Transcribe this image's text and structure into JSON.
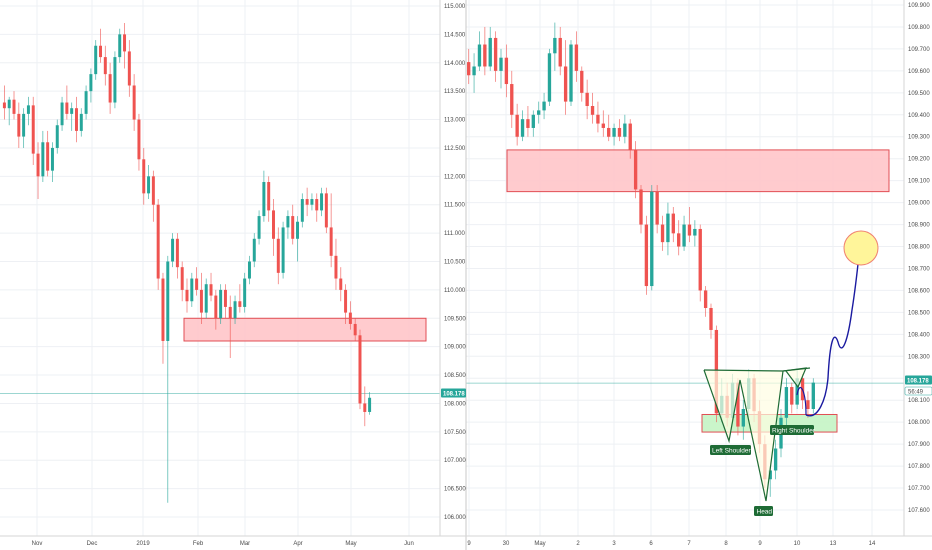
{
  "colors": {
    "up": "#26a69a",
    "down": "#ef5350",
    "grid": "#eef0f4",
    "current_line": "#26a69a",
    "zone_red_fill": "#ffc9cc",
    "zone_red_stroke": "#e0454b",
    "zone_green_fill": "#c8f5c8",
    "zone_green_stroke": "#e0454b",
    "pattern_fill": "#fffde3",
    "pattern_stroke": "#1e6b35",
    "projection": "#1a1aa0",
    "target_fill": "#fff59a",
    "target_stroke": "#f08070",
    "label_bg": "#1e6b35"
  },
  "chart_data": [
    {
      "type": "candlestick",
      "title": "",
      "x_ticks": [
        "Nov",
        "Dec",
        "2019",
        "Feb",
        "Mar",
        "Apr",
        "May",
        "Jun"
      ],
      "y_ticks": [
        "115.000",
        "114.500",
        "114.000",
        "113.500",
        "113.000",
        "112.500",
        "112.000",
        "111.500",
        "111.000",
        "110.500",
        "110.000",
        "109.500",
        "109.000",
        "108.500",
        "108.000",
        "107.500",
        "107.000",
        "106.500",
        "106.000"
      ],
      "ylim": [
        105.8,
        115.1
      ],
      "current_price": "108.178",
      "zones": [
        {
          "label": "resistance",
          "from": 109.1,
          "to": 109.5
        }
      ],
      "candles": [
        {
          "o": 113.3,
          "h": 113.6,
          "l": 113.0,
          "c": 113.2
        },
        {
          "o": 113.2,
          "h": 113.4,
          "l": 112.9,
          "c": 113.35
        },
        {
          "o": 113.35,
          "h": 113.5,
          "l": 113.0,
          "c": 113.1
        },
        {
          "o": 113.1,
          "h": 113.3,
          "l": 112.5,
          "c": 112.7
        },
        {
          "o": 112.7,
          "h": 113.2,
          "l": 112.5,
          "c": 113.1
        },
        {
          "o": 113.1,
          "h": 113.4,
          "l": 112.9,
          "c": 113.25
        },
        {
          "o": 113.25,
          "h": 113.4,
          "l": 112.2,
          "c": 112.4
        },
        {
          "o": 112.4,
          "h": 112.6,
          "l": 111.6,
          "c": 112.0
        },
        {
          "o": 112.0,
          "h": 112.8,
          "l": 111.9,
          "c": 112.6
        },
        {
          "o": 112.6,
          "h": 112.8,
          "l": 112.0,
          "c": 112.1
        },
        {
          "o": 112.1,
          "h": 112.6,
          "l": 111.9,
          "c": 112.5
        },
        {
          "o": 112.5,
          "h": 113.0,
          "l": 112.4,
          "c": 112.9
        },
        {
          "o": 112.9,
          "h": 113.4,
          "l": 112.8,
          "c": 113.3
        },
        {
          "o": 113.3,
          "h": 113.6,
          "l": 113.0,
          "c": 113.1
        },
        {
          "o": 113.1,
          "h": 113.3,
          "l": 112.8,
          "c": 113.2
        },
        {
          "o": 113.2,
          "h": 113.4,
          "l": 112.6,
          "c": 112.8
        },
        {
          "o": 112.8,
          "h": 113.2,
          "l": 112.7,
          "c": 113.1
        },
        {
          "o": 113.1,
          "h": 113.6,
          "l": 113.0,
          "c": 113.5
        },
        {
          "o": 113.5,
          "h": 113.9,
          "l": 113.3,
          "c": 113.8
        },
        {
          "o": 113.8,
          "h": 114.4,
          "l": 113.7,
          "c": 114.3
        },
        {
          "o": 114.3,
          "h": 114.6,
          "l": 114.0,
          "c": 114.1
        },
        {
          "o": 114.1,
          "h": 114.3,
          "l": 113.6,
          "c": 113.8
        },
        {
          "o": 113.8,
          "h": 114.0,
          "l": 113.1,
          "c": 113.3
        },
        {
          "o": 113.3,
          "h": 114.2,
          "l": 113.2,
          "c": 114.1
        },
        {
          "o": 114.1,
          "h": 114.6,
          "l": 114.0,
          "c": 114.5
        },
        {
          "o": 114.5,
          "h": 114.7,
          "l": 113.9,
          "c": 114.2
        },
        {
          "o": 114.2,
          "h": 114.4,
          "l": 113.4,
          "c": 113.6
        },
        {
          "o": 113.6,
          "h": 113.8,
          "l": 112.8,
          "c": 113.0
        },
        {
          "o": 113.0,
          "h": 113.1,
          "l": 112.1,
          "c": 112.3
        },
        {
          "o": 112.3,
          "h": 112.5,
          "l": 111.5,
          "c": 111.7
        },
        {
          "o": 111.7,
          "h": 112.2,
          "l": 111.6,
          "c": 112.0
        },
        {
          "o": 112.0,
          "h": 112.1,
          "l": 111.2,
          "c": 111.5
        },
        {
          "o": 111.5,
          "h": 111.6,
          "l": 110.0,
          "c": 110.2
        },
        {
          "o": 110.2,
          "h": 110.3,
          "l": 108.7,
          "c": 109.1
        },
        {
          "o": 109.1,
          "h": 110.6,
          "l": 106.25,
          "c": 110.5
        },
        {
          "o": 110.5,
          "h": 111.0,
          "l": 110.4,
          "c": 110.9
        },
        {
          "o": 110.9,
          "h": 111.0,
          "l": 110.2,
          "c": 110.4
        },
        {
          "o": 110.4,
          "h": 110.5,
          "l": 109.8,
          "c": 110.0
        },
        {
          "o": 110.0,
          "h": 110.2,
          "l": 109.6,
          "c": 109.8
        },
        {
          "o": 109.8,
          "h": 110.3,
          "l": 109.7,
          "c": 110.2
        },
        {
          "o": 110.2,
          "h": 110.4,
          "l": 109.9,
          "c": 110.0
        },
        {
          "o": 110.0,
          "h": 110.3,
          "l": 109.4,
          "c": 109.6
        },
        {
          "o": 109.6,
          "h": 110.2,
          "l": 109.5,
          "c": 110.1
        },
        {
          "o": 110.1,
          "h": 110.3,
          "l": 109.8,
          "c": 109.9
        },
        {
          "o": 109.9,
          "h": 110.0,
          "l": 109.3,
          "c": 109.5
        },
        {
          "o": 109.5,
          "h": 110.1,
          "l": 109.4,
          "c": 110.0
        },
        {
          "o": 110.0,
          "h": 110.1,
          "l": 109.5,
          "c": 109.7
        },
        {
          "o": 109.7,
          "h": 109.9,
          "l": 108.8,
          "c": 109.5
        },
        {
          "o": 109.5,
          "h": 109.9,
          "l": 109.4,
          "c": 109.8
        },
        {
          "o": 109.8,
          "h": 110.1,
          "l": 109.6,
          "c": 109.7
        },
        {
          "o": 109.7,
          "h": 110.3,
          "l": 109.6,
          "c": 110.2
        },
        {
          "o": 110.2,
          "h": 110.6,
          "l": 110.1,
          "c": 110.5
        },
        {
          "o": 110.5,
          "h": 111.0,
          "l": 110.4,
          "c": 110.9
        },
        {
          "o": 110.9,
          "h": 111.4,
          "l": 110.8,
          "c": 111.3
        },
        {
          "o": 111.3,
          "h": 112.1,
          "l": 111.2,
          "c": 111.9
        },
        {
          "o": 111.9,
          "h": 112.0,
          "l": 111.2,
          "c": 111.4
        },
        {
          "o": 111.4,
          "h": 111.6,
          "l": 110.6,
          "c": 110.9
        },
        {
          "o": 110.9,
          "h": 111.1,
          "l": 110.1,
          "c": 110.3
        },
        {
          "o": 110.3,
          "h": 111.2,
          "l": 110.2,
          "c": 111.1
        },
        {
          "o": 111.1,
          "h": 111.4,
          "l": 110.9,
          "c": 111.3
        },
        {
          "o": 111.3,
          "h": 111.5,
          "l": 110.8,
          "c": 110.9
        },
        {
          "o": 110.9,
          "h": 111.3,
          "l": 110.5,
          "c": 111.2
        },
        {
          "o": 111.2,
          "h": 111.7,
          "l": 111.1,
          "c": 111.6
        },
        {
          "o": 111.6,
          "h": 111.8,
          "l": 111.3,
          "c": 111.5
        },
        {
          "o": 111.5,
          "h": 111.7,
          "l": 111.4,
          "c": 111.6
        },
        {
          "o": 111.6,
          "h": 111.7,
          "l": 111.2,
          "c": 111.4
        },
        {
          "o": 111.4,
          "h": 111.8,
          "l": 111.3,
          "c": 111.7
        },
        {
          "o": 111.7,
          "h": 111.8,
          "l": 111.0,
          "c": 111.1
        },
        {
          "o": 111.1,
          "h": 111.7,
          "l": 110.4,
          "c": 110.6
        },
        {
          "o": 110.6,
          "h": 110.9,
          "l": 110.0,
          "c": 110.2
        },
        {
          "o": 110.2,
          "h": 110.4,
          "l": 109.8,
          "c": 110.0
        },
        {
          "o": 110.0,
          "h": 110.1,
          "l": 109.4,
          "c": 109.6
        },
        {
          "o": 109.6,
          "h": 109.8,
          "l": 109.3,
          "c": 109.4
        },
        {
          "o": 109.4,
          "h": 109.5,
          "l": 109.1,
          "c": 109.2
        },
        {
          "o": 109.2,
          "h": 109.3,
          "l": 107.9,
          "c": 108.0
        },
        {
          "o": 108.0,
          "h": 108.3,
          "l": 107.6,
          "c": 107.85
        },
        {
          "o": 107.85,
          "h": 108.2,
          "l": 107.8,
          "c": 108.1
        }
      ]
    },
    {
      "type": "candlestick",
      "title": "",
      "x_ticks": [
        "9",
        "30",
        "May",
        "2",
        "3",
        "6",
        "7",
        "8",
        "9",
        "10",
        "13",
        "14"
      ],
      "y_ticks": [
        "109.900",
        "109.800",
        "109.700",
        "109.600",
        "109.500",
        "109.400",
        "109.300",
        "109.200",
        "109.100",
        "109.000",
        "108.900",
        "108.800",
        "108.700",
        "108.600",
        "108.500",
        "108.400",
        "108.300",
        "108.200",
        "108.100",
        "108.000",
        "107.900",
        "107.800",
        "107.700",
        "107.600"
      ],
      "ylim": [
        107.55,
        109.95
      ],
      "current_price": "108.178",
      "countdown": "56:49",
      "zones": [
        {
          "label": "resistance",
          "from": 109.05,
          "to": 109.24
        },
        {
          "label": "support",
          "from": 107.955,
          "to": 108.035
        }
      ],
      "annotations": [
        "Left Shoulder",
        "Head",
        "Right Shoulder"
      ],
      "candles": [
        {
          "o": 109.64,
          "h": 109.7,
          "l": 109.54,
          "c": 109.58
        },
        {
          "o": 109.58,
          "h": 109.68,
          "l": 109.5,
          "c": 109.62
        },
        {
          "o": 109.62,
          "h": 109.78,
          "l": 109.6,
          "c": 109.72
        },
        {
          "o": 109.72,
          "h": 109.8,
          "l": 109.58,
          "c": 109.62
        },
        {
          "o": 109.62,
          "h": 109.8,
          "l": 109.6,
          "c": 109.75
        },
        {
          "o": 109.75,
          "h": 109.78,
          "l": 109.55,
          "c": 109.6
        },
        {
          "o": 109.6,
          "h": 109.7,
          "l": 109.52,
          "c": 109.66
        },
        {
          "o": 109.66,
          "h": 109.72,
          "l": 109.48,
          "c": 109.54
        },
        {
          "o": 109.54,
          "h": 109.6,
          "l": 109.34,
          "c": 109.4
        },
        {
          "o": 109.4,
          "h": 109.45,
          "l": 109.26,
          "c": 109.3
        },
        {
          "o": 109.3,
          "h": 109.42,
          "l": 109.28,
          "c": 109.38
        },
        {
          "o": 109.38,
          "h": 109.44,
          "l": 109.3,
          "c": 109.34
        },
        {
          "o": 109.34,
          "h": 109.42,
          "l": 109.3,
          "c": 109.4
        },
        {
          "o": 109.4,
          "h": 109.46,
          "l": 109.36,
          "c": 109.42
        },
        {
          "o": 109.42,
          "h": 109.5,
          "l": 109.38,
          "c": 109.46
        },
        {
          "o": 109.46,
          "h": 109.7,
          "l": 109.44,
          "c": 109.68
        },
        {
          "o": 109.68,
          "h": 109.82,
          "l": 109.6,
          "c": 109.75
        },
        {
          "o": 109.75,
          "h": 109.8,
          "l": 109.58,
          "c": 109.62
        },
        {
          "o": 109.62,
          "h": 109.74,
          "l": 109.4,
          "c": 109.46
        },
        {
          "o": 109.46,
          "h": 109.74,
          "l": 109.44,
          "c": 109.72
        },
        {
          "o": 109.72,
          "h": 109.78,
          "l": 109.55,
          "c": 109.6
        },
        {
          "o": 109.6,
          "h": 109.62,
          "l": 109.46,
          "c": 109.5
        },
        {
          "o": 109.5,
          "h": 109.56,
          "l": 109.38,
          "c": 109.44
        },
        {
          "o": 109.44,
          "h": 109.5,
          "l": 109.36,
          "c": 109.4
        },
        {
          "o": 109.4,
          "h": 109.46,
          "l": 109.32,
          "c": 109.36
        },
        {
          "o": 109.36,
          "h": 109.42,
          "l": 109.3,
          "c": 109.34
        },
        {
          "o": 109.34,
          "h": 109.4,
          "l": 109.28,
          "c": 109.3
        },
        {
          "o": 109.3,
          "h": 109.36,
          "l": 109.26,
          "c": 109.34
        },
        {
          "o": 109.34,
          "h": 109.38,
          "l": 109.28,
          "c": 109.3
        },
        {
          "o": 109.3,
          "h": 109.4,
          "l": 109.27,
          "c": 109.36
        },
        {
          "o": 109.36,
          "h": 109.38,
          "l": 109.2,
          "c": 109.24
        },
        {
          "o": 109.24,
          "h": 109.28,
          "l": 109.02,
          "c": 109.06
        },
        {
          "o": 109.06,
          "h": 109.08,
          "l": 108.86,
          "c": 108.9
        },
        {
          "o": 108.9,
          "h": 108.94,
          "l": 108.58,
          "c": 108.62
        },
        {
          "o": 108.62,
          "h": 109.08,
          "l": 108.6,
          "c": 109.05
        },
        {
          "o": 109.05,
          "h": 109.08,
          "l": 108.86,
          "c": 108.9
        },
        {
          "o": 108.9,
          "h": 108.94,
          "l": 108.78,
          "c": 108.82
        },
        {
          "o": 108.82,
          "h": 109.0,
          "l": 108.76,
          "c": 108.95
        },
        {
          "o": 108.95,
          "h": 108.98,
          "l": 108.82,
          "c": 108.86
        },
        {
          "o": 108.86,
          "h": 108.92,
          "l": 108.76,
          "c": 108.8
        },
        {
          "o": 108.8,
          "h": 108.94,
          "l": 108.78,
          "c": 108.9
        },
        {
          "o": 108.9,
          "h": 108.98,
          "l": 108.82,
          "c": 108.85
        },
        {
          "o": 108.85,
          "h": 108.92,
          "l": 108.8,
          "c": 108.88
        },
        {
          "o": 108.88,
          "h": 108.9,
          "l": 108.55,
          "c": 108.6
        },
        {
          "o": 108.6,
          "h": 108.62,
          "l": 108.48,
          "c": 108.52
        },
        {
          "o": 108.52,
          "h": 108.54,
          "l": 108.38,
          "c": 108.42
        },
        {
          "o": 108.42,
          "h": 108.44,
          "l": 108.0,
          "c": 108.04
        },
        {
          "o": 108.04,
          "h": 108.2,
          "l": 108.0,
          "c": 108.12
        },
        {
          "o": 108.12,
          "h": 108.18,
          "l": 107.98,
          "c": 108.02
        },
        {
          "o": 108.02,
          "h": 108.22,
          "l": 108.0,
          "c": 108.18
        },
        {
          "o": 108.18,
          "h": 108.2,
          "l": 107.94,
          "c": 107.98
        },
        {
          "o": 107.98,
          "h": 108.1,
          "l": 107.92,
          "c": 108.06
        },
        {
          "o": 108.06,
          "h": 108.24,
          "l": 108.02,
          "c": 108.2
        },
        {
          "o": 108.2,
          "h": 108.22,
          "l": 108.0,
          "c": 108.05
        },
        {
          "o": 108.05,
          "h": 108.1,
          "l": 107.86,
          "c": 107.9
        },
        {
          "o": 107.9,
          "h": 107.94,
          "l": 107.7,
          "c": 107.74
        },
        {
          "o": 107.74,
          "h": 107.8,
          "l": 107.66,
          "c": 107.78
        },
        {
          "o": 107.78,
          "h": 107.92,
          "l": 107.74,
          "c": 107.88
        },
        {
          "o": 107.88,
          "h": 108.06,
          "l": 107.84,
          "c": 108.02
        },
        {
          "o": 108.02,
          "h": 108.2,
          "l": 107.98,
          "c": 108.16
        },
        {
          "o": 108.16,
          "h": 108.18,
          "l": 108.04,
          "c": 108.08
        },
        {
          "o": 108.08,
          "h": 108.24,
          "l": 108.06,
          "c": 108.2
        },
        {
          "o": 108.2,
          "h": 108.22,
          "l": 108.06,
          "c": 108.1
        },
        {
          "o": 108.1,
          "h": 108.14,
          "l": 108.02,
          "c": 108.06
        },
        {
          "o": 108.06,
          "h": 108.2,
          "l": 108.04,
          "c": 108.18
        }
      ]
    }
  ],
  "labels": {
    "left_price_badge": "108.178",
    "right_price_badge": "108.178",
    "right_countdown": "56:49",
    "left_shoulder": "Left Shoulder",
    "head": "Head",
    "right_shoulder": "Right Shoulder"
  }
}
